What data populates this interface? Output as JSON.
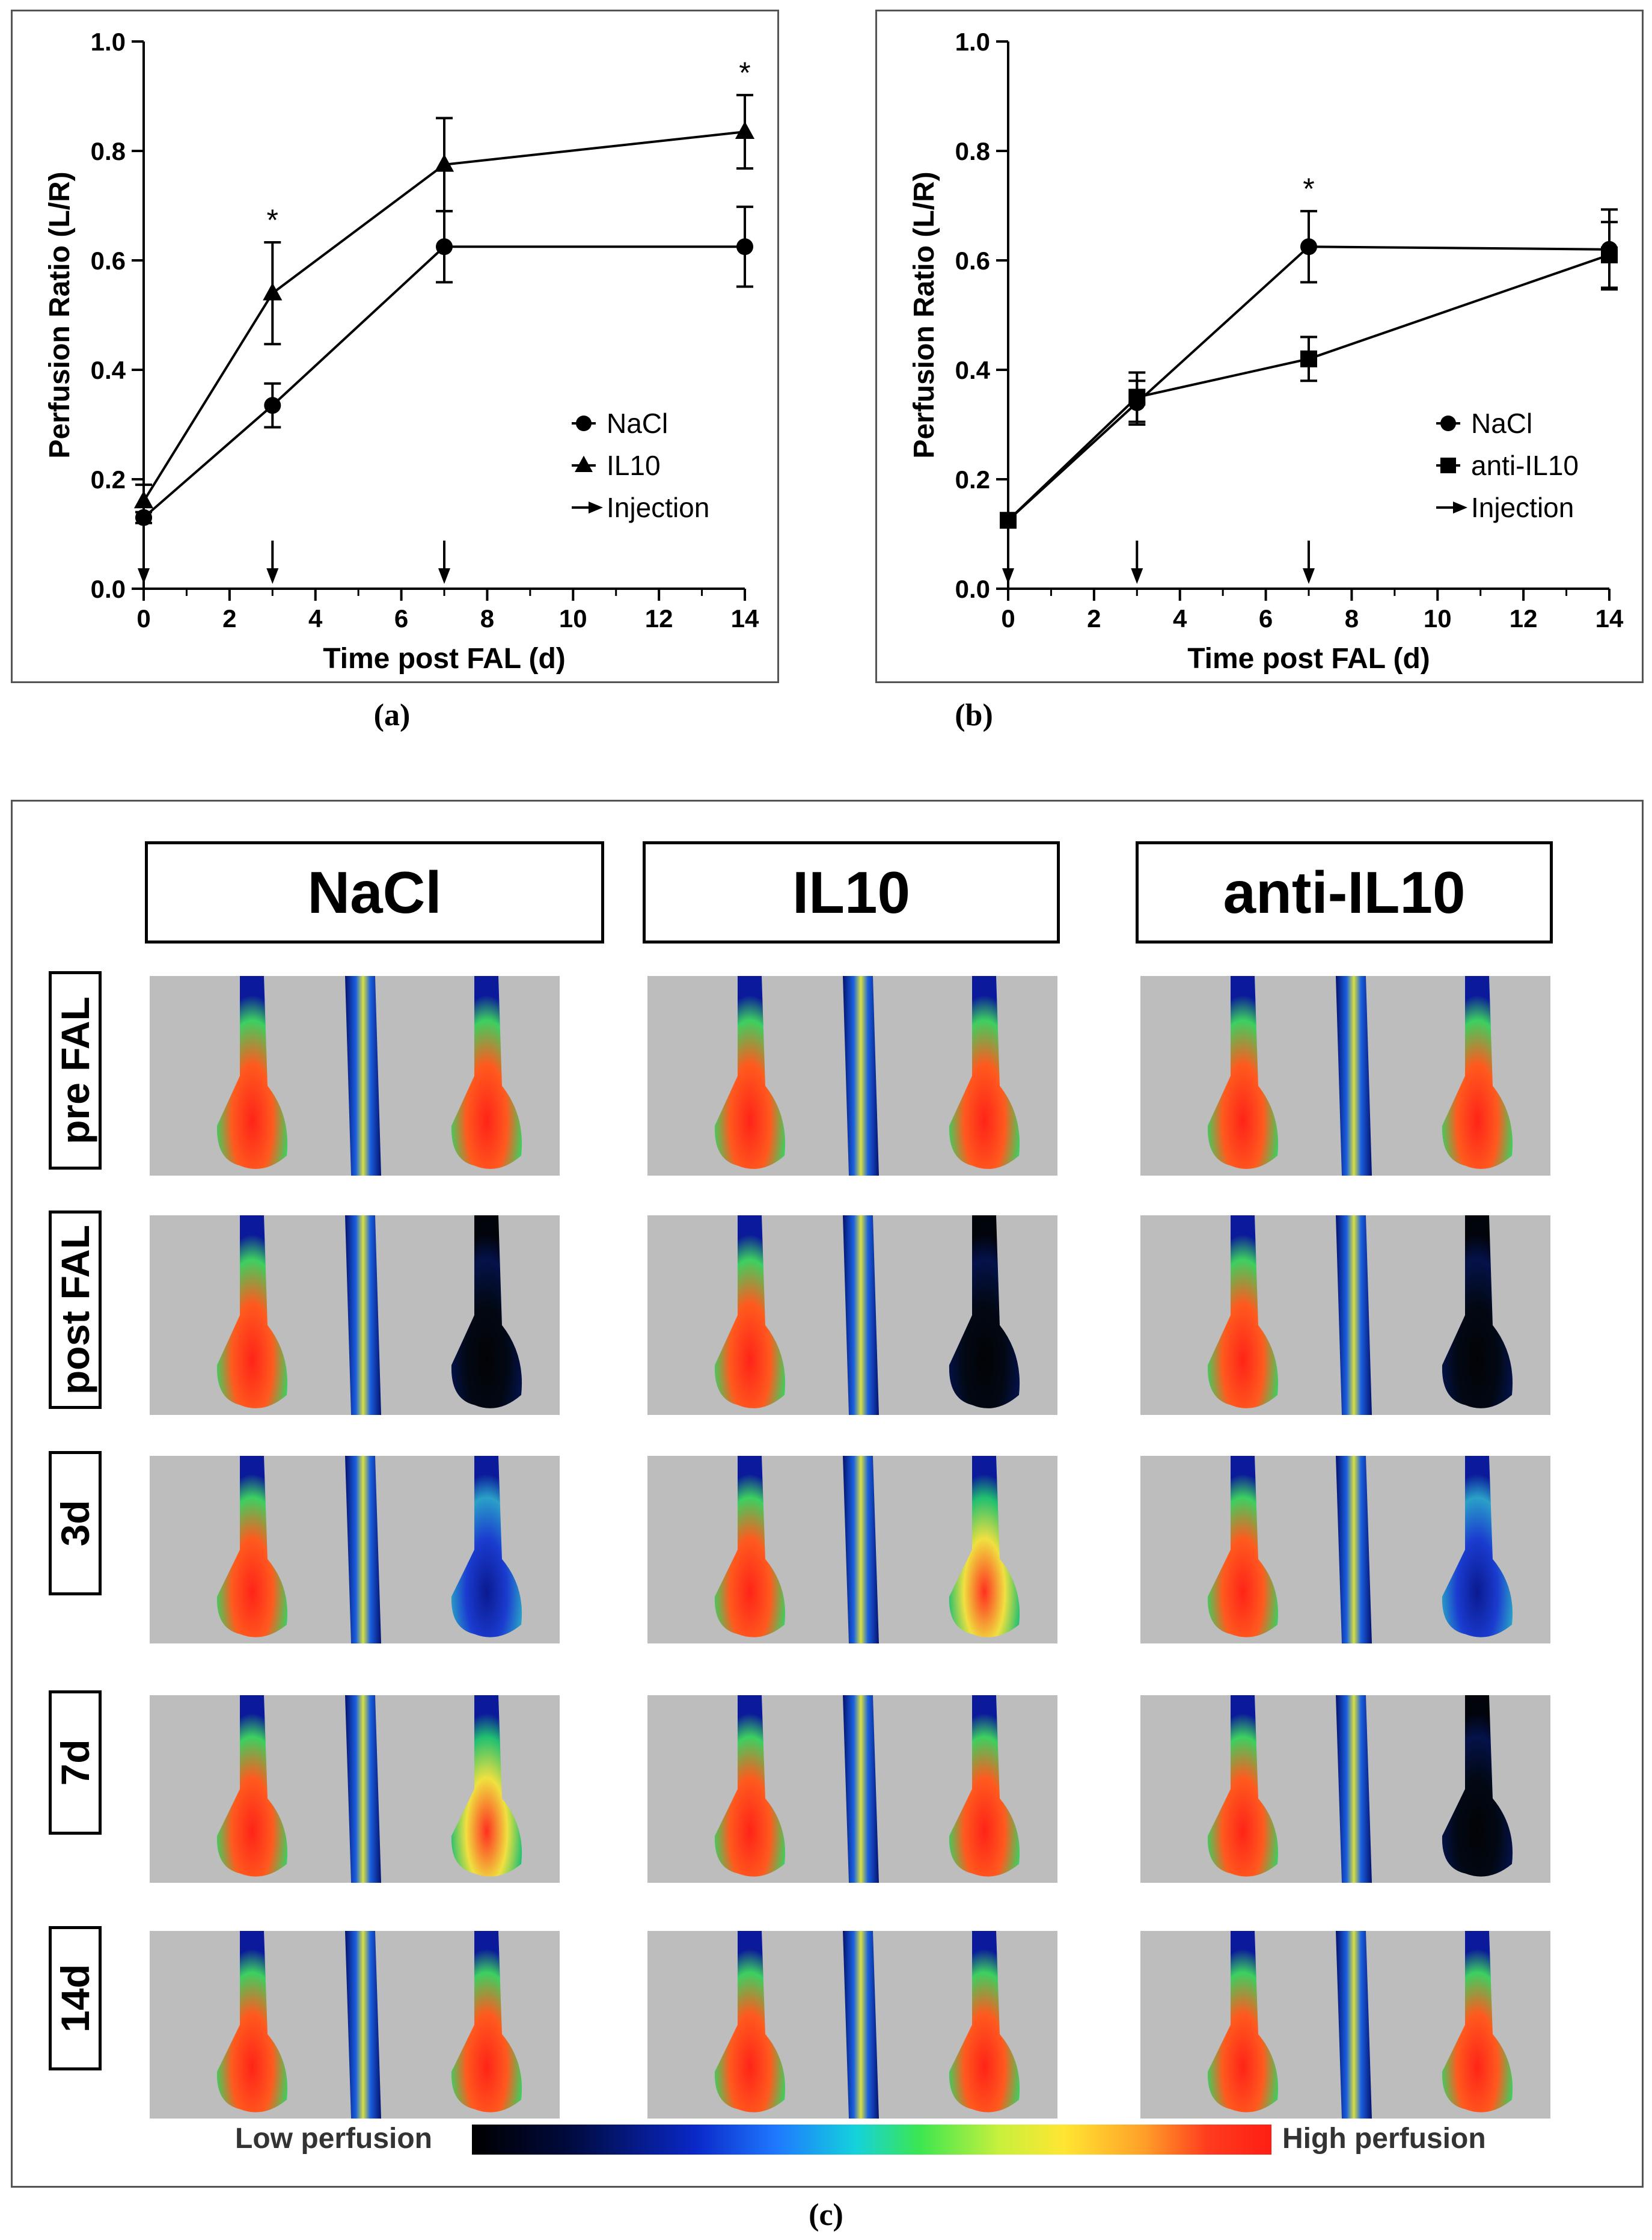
{
  "chart_data": [
    {
      "id": "a",
      "type": "line",
      "panel_label": "(a)",
      "xlabel": "Time post FAL (d)",
      "ylabel": "Perfusion Ratio (L/R)",
      "xlim": [
        0,
        14
      ],
      "ylim": [
        0.0,
        1.0
      ],
      "xticks": [
        "0",
        "2",
        "4",
        "6",
        "8",
        "10",
        "12",
        "14"
      ],
      "yticks": [
        "0.0",
        "0.2",
        "0.4",
        "0.6",
        "0.8",
        "1.0"
      ],
      "series": [
        {
          "name": "NaCl",
          "marker": "circle",
          "x": [
            0,
            3,
            7,
            14
          ],
          "y": [
            0.13,
            0.335,
            0.625,
            0.625
          ],
          "err": [
            0.01,
            0.04,
            0.065,
            0.073
          ]
        },
        {
          "name": "IL10",
          "marker": "triangle",
          "x": [
            0,
            3,
            7,
            14
          ],
          "y": [
            0.16,
            0.54,
            0.775,
            0.835
          ],
          "err": [
            0.03,
            0.093,
            0.085,
            0.067
          ]
        }
      ],
      "significance": [
        {
          "x": 3,
          "label": "*"
        },
        {
          "x": 14,
          "label": "*"
        }
      ],
      "injections_x": [
        0,
        3,
        7
      ],
      "legend": [
        "NaCl",
        "IL10",
        "Injection"
      ],
      "legend_position": "bottom-right"
    },
    {
      "id": "b",
      "type": "line",
      "panel_label": "(b)",
      "xlabel": "Time post FAL (d)",
      "ylabel": "Perfusion Ratio (L/R)",
      "xlim": [
        0,
        14
      ],
      "ylim": [
        0.0,
        1.0
      ],
      "xticks": [
        "0",
        "2",
        "4",
        "6",
        "8",
        "10",
        "12",
        "14"
      ],
      "yticks": [
        "0.0",
        "0.2",
        "0.4",
        "0.6",
        "0.8",
        "1.0"
      ],
      "series": [
        {
          "name": "NaCl",
          "marker": "circle",
          "x": [
            0,
            3,
            7,
            14
          ],
          "y": [
            0.125,
            0.34,
            0.625,
            0.62
          ],
          "err": [
            0.01,
            0.04,
            0.065,
            0.073
          ]
        },
        {
          "name": "anti-IL10",
          "marker": "square",
          "x": [
            0,
            3,
            7,
            14
          ],
          "y": [
            0.125,
            0.35,
            0.42,
            0.61
          ],
          "err": [
            0.01,
            0.045,
            0.04,
            0.06
          ]
        }
      ],
      "significance": [
        {
          "x": 7,
          "label": "*"
        }
      ],
      "injections_x": [
        0,
        3,
        7
      ],
      "legend": [
        "NaCl",
        "anti-IL10",
        "Injection"
      ],
      "legend_position": "bottom-right"
    }
  ],
  "panel_c": {
    "label": "(c)",
    "columns": [
      "NaCl",
      "IL10",
      "anti-IL10"
    ],
    "rows": [
      "pre FAL",
      "post FAL",
      "3d",
      "7d",
      "14d"
    ],
    "colorbar": {
      "low": "Low perfusion",
      "high": "High perfusion"
    },
    "right_paw_perfusion": [
      [
        1.0,
        1.0,
        1.0
      ],
      [
        0.05,
        0.05,
        0.1
      ],
      [
        0.15,
        0.55,
        0.15
      ],
      [
        0.75,
        0.85,
        0.12
      ],
      [
        0.9,
        0.95,
        0.9
      ]
    ]
  }
}
